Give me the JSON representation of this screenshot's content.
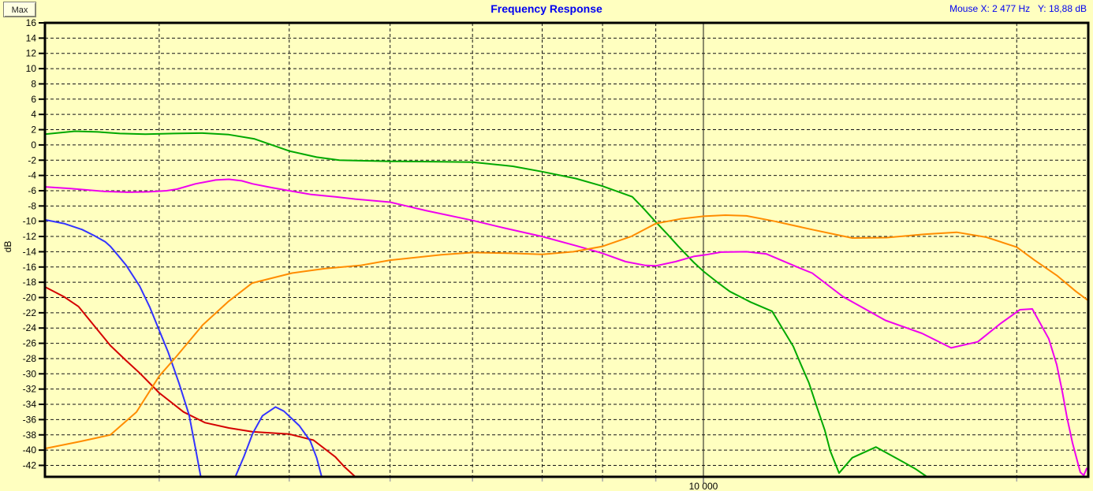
{
  "window": {
    "background": "#FFFFC0"
  },
  "toolbar": {
    "max_button_label": "Max"
  },
  "header": {
    "title": "Frequency Response",
    "title_color": "#0000F0",
    "mouse_readout": "Mouse X: 2 477 Hz   Y: 18,88 dB"
  },
  "chart_data": {
    "type": "line",
    "title": "Frequency Response",
    "grid": "on",
    "legend_position": "none",
    "x_axis": {
      "scale": "log",
      "unit": "Hz",
      "min": 2330,
      "max": 23430,
      "gridlines": [
        3000,
        4000,
        5000,
        6000,
        7000,
        8000,
        9000,
        10000,
        20000
      ],
      "major_tick": 10000,
      "major_tick_label": "10 000"
    },
    "y_axis": {
      "label": "dB",
      "min": -43.5,
      "max": 16,
      "tick_step": 2,
      "ticks": [
        16,
        14,
        12,
        10,
        8,
        6,
        4,
        2,
        0,
        -2,
        -4,
        -6,
        -8,
        -10,
        -12,
        -14,
        -16,
        -18,
        -20,
        -22,
        -24,
        -26,
        -28,
        -30,
        -32,
        -34,
        -36,
        -38,
        -40,
        -42
      ]
    },
    "series": [
      {
        "name": "red-curve",
        "color": "#D40000",
        "points": [
          [
            2330,
            -18.6
          ],
          [
            2430,
            -19.9
          ],
          [
            2510,
            -21.2
          ],
          [
            2693,
            -26.3
          ],
          [
            2790,
            -28.3
          ],
          [
            2873,
            -29.9
          ],
          [
            3000,
            -32.5
          ],
          [
            3166,
            -35.0
          ],
          [
            3320,
            -36.4
          ],
          [
            3500,
            -37.1
          ],
          [
            3690,
            -37.6
          ],
          [
            4000,
            -37.9
          ],
          [
            4220,
            -38.7
          ],
          [
            4430,
            -40.9
          ],
          [
            4520,
            -42.2
          ],
          [
            4630,
            -43.5
          ],
          [
            4700,
            -45.5
          ]
        ]
      },
      {
        "name": "blue-curve",
        "color": "#3333FF",
        "points": [
          [
            2330,
            -9.8
          ],
          [
            2430,
            -10.3
          ],
          [
            2530,
            -11.1
          ],
          [
            2600,
            -11.9
          ],
          [
            2662,
            -12.7
          ],
          [
            2693,
            -13.3
          ],
          [
            2740,
            -14.5
          ],
          [
            2789,
            -15.8
          ],
          [
            2873,
            -18.5
          ],
          [
            2939,
            -21.3
          ],
          [
            3000,
            -24.3
          ],
          [
            3059,
            -27.1
          ],
          [
            3134,
            -31.2
          ],
          [
            3205,
            -35.4
          ],
          [
            3248,
            -39.5
          ],
          [
            3290,
            -43.6
          ],
          [
            3340,
            -47.0
          ],
          [
            3480,
            -47.0
          ],
          [
            3548,
            -43.6
          ],
          [
            3620,
            -40.8
          ],
          [
            3690,
            -37.8
          ],
          [
            3770,
            -35.5
          ],
          [
            3880,
            -34.35
          ],
          [
            3953,
            -34.9
          ],
          [
            4090,
            -36.8
          ],
          [
            4190,
            -38.8
          ],
          [
            4250,
            -41.0
          ],
          [
            4300,
            -43.6
          ],
          [
            4330,
            -46.0
          ]
        ]
      },
      {
        "name": "green-curve",
        "color": "#00A800",
        "points": [
          [
            2330,
            1.4
          ],
          [
            2490,
            1.8
          ],
          [
            2620,
            1.7
          ],
          [
            2750,
            1.5
          ],
          [
            2910,
            1.4
          ],
          [
            3100,
            1.5
          ],
          [
            3300,
            1.55
          ],
          [
            3500,
            1.35
          ],
          [
            3700,
            0.8
          ],
          [
            4000,
            -0.8
          ],
          [
            4250,
            -1.6
          ],
          [
            4470,
            -2.0
          ],
          [
            5000,
            -2.15
          ],
          [
            5600,
            -2.2
          ],
          [
            6000,
            -2.25
          ],
          [
            6560,
            -2.8
          ],
          [
            7000,
            -3.5
          ],
          [
            7540,
            -4.4
          ],
          [
            8000,
            -5.4
          ],
          [
            8545,
            -6.8
          ],
          [
            8770,
            -8.4
          ],
          [
            9000,
            -10.1
          ],
          [
            9220,
            -11.6
          ],
          [
            9460,
            -13.3
          ],
          [
            9790,
            -15.4
          ],
          [
            10010,
            -16.6
          ],
          [
            10360,
            -18.2
          ],
          [
            10600,
            -19.2
          ],
          [
            11100,
            -20.6
          ],
          [
            11640,
            -21.8
          ],
          [
            12200,
            -26.4
          ],
          [
            12410,
            -28.8
          ],
          [
            12630,
            -31.2
          ],
          [
            12850,
            -34.3
          ],
          [
            13080,
            -37.4
          ],
          [
            13240,
            -40.1
          ],
          [
            13500,
            -43.0
          ],
          [
            13900,
            -41.0
          ],
          [
            14650,
            -39.6
          ],
          [
            15390,
            -41.2
          ],
          [
            16000,
            -42.5
          ],
          [
            16360,
            -43.4
          ],
          [
            16500,
            -44.5
          ]
        ]
      },
      {
        "name": "magenta-curve",
        "color": "#EE00EE",
        "points": [
          [
            2330,
            -5.5
          ],
          [
            2460,
            -5.7
          ],
          [
            2660,
            -6.1
          ],
          [
            2800,
            -6.2
          ],
          [
            2930,
            -6.15
          ],
          [
            3050,
            -6.0
          ],
          [
            3120,
            -5.8
          ],
          [
            3250,
            -5.1
          ],
          [
            3400,
            -4.6
          ],
          [
            3500,
            -4.5
          ],
          [
            3600,
            -4.7
          ],
          [
            3690,
            -5.1
          ],
          [
            3850,
            -5.6
          ],
          [
            4000,
            -6.0
          ],
          [
            4200,
            -6.5
          ],
          [
            4430,
            -6.8
          ],
          [
            4630,
            -7.1
          ],
          [
            5000,
            -7.5
          ],
          [
            5410,
            -8.6
          ],
          [
            6000,
            -9.9
          ],
          [
            6440,
            -10.9
          ],
          [
            7000,
            -12.0
          ],
          [
            7540,
            -13.2
          ],
          [
            8000,
            -14.2
          ],
          [
            8420,
            -15.3
          ],
          [
            8800,
            -15.8
          ],
          [
            9000,
            -15.85
          ],
          [
            9400,
            -15.3
          ],
          [
            9800,
            -14.6
          ],
          [
            10050,
            -14.4
          ],
          [
            10400,
            -14.05
          ],
          [
            11000,
            -14.0
          ],
          [
            11500,
            -14.3
          ],
          [
            12350,
            -16.1
          ],
          [
            12720,
            -16.8
          ],
          [
            13620,
            -19.9
          ],
          [
            14960,
            -23.0
          ],
          [
            16220,
            -24.7
          ],
          [
            17300,
            -26.6
          ],
          [
            18350,
            -25.8
          ],
          [
            19300,
            -23.4
          ],
          [
            20140,
            -21.6
          ],
          [
            20700,
            -21.5
          ],
          [
            21470,
            -25.4
          ],
          [
            21850,
            -28.8
          ],
          [
            22120,
            -32.3
          ],
          [
            22350,
            -35.7
          ],
          [
            22630,
            -39.1
          ],
          [
            23020,
            -42.9
          ],
          [
            23200,
            -43.3
          ],
          [
            23350,
            -42.4
          ]
        ]
      },
      {
        "name": "orange-curve",
        "color": "#FF8C00",
        "points": [
          [
            2330,
            -39.8
          ],
          [
            2512,
            -38.9
          ],
          [
            2693,
            -38.0
          ],
          [
            2853,
            -35.0
          ],
          [
            3000,
            -30.3
          ],
          [
            3113,
            -27.8
          ],
          [
            3303,
            -23.6
          ],
          [
            3498,
            -20.5
          ],
          [
            3686,
            -18.1
          ],
          [
            4025,
            -16.8
          ],
          [
            4330,
            -16.2
          ],
          [
            4680,
            -15.8
          ],
          [
            5000,
            -15.1
          ],
          [
            5600,
            -14.4
          ],
          [
            6000,
            -14.1
          ],
          [
            6550,
            -14.2
          ],
          [
            7000,
            -14.35
          ],
          [
            7500,
            -14.0
          ],
          [
            8000,
            -13.3
          ],
          [
            8520,
            -12.0
          ],
          [
            9000,
            -10.3
          ],
          [
            9500,
            -9.7
          ],
          [
            10000,
            -9.35
          ],
          [
            10500,
            -9.2
          ],
          [
            11000,
            -9.3
          ],
          [
            11700,
            -10.0
          ],
          [
            12720,
            -11.1
          ],
          [
            13900,
            -12.2
          ],
          [
            15000,
            -12.15
          ],
          [
            16300,
            -11.7
          ],
          [
            17510,
            -11.45
          ],
          [
            18700,
            -12.1
          ],
          [
            20000,
            -13.4
          ],
          [
            20800,
            -15.1
          ],
          [
            21850,
            -17.1
          ],
          [
            22800,
            -19.2
          ],
          [
            23430,
            -20.4
          ]
        ]
      }
    ]
  }
}
